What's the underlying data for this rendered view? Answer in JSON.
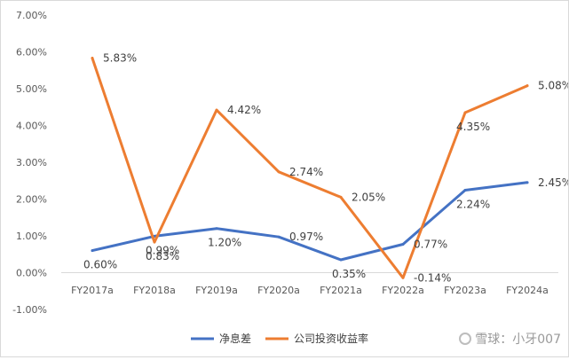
{
  "chart_data": {
    "type": "line",
    "title": "",
    "xlabel": "",
    "ylabel": "",
    "categories": [
      "FY2017a",
      "FY2018a",
      "FY2019a",
      "FY2020a",
      "FY2021a",
      "FY2022a",
      "FY2023a",
      "FY2024a"
    ],
    "ylim": [
      -1.0,
      7.0
    ],
    "yticks": [
      "7.00%",
      "6.00%",
      "5.00%",
      "4.00%",
      "3.00%",
      "2.00%",
      "1.00%",
      "0.00%",
      "-1.00%"
    ],
    "ytick_values": [
      7,
      6,
      5,
      4,
      3,
      2,
      1,
      0,
      -1
    ],
    "grid": false,
    "legend_position": "bottom",
    "series": [
      {
        "name": "净息差",
        "color": "#4472C4",
        "values": [
          0.6,
          0.99,
          1.2,
          0.97,
          0.35,
          0.77,
          2.24,
          2.45
        ],
        "labels": [
          "0.60%",
          "0.99%",
          "1.20%",
          "0.97%",
          "0.35%",
          "0.77%",
          "2.24%",
          "2.45%"
        ],
        "label_side": [
          "below",
          "below",
          "below",
          "right",
          "below",
          "right",
          "below",
          "right"
        ]
      },
      {
        "name": "公司投资收益率",
        "color": "#ED7D31",
        "values": [
          5.83,
          0.83,
          4.42,
          2.74,
          2.05,
          -0.14,
          4.35,
          5.08
        ],
        "labels": [
          "5.83%",
          "0.83%",
          "4.42%",
          "2.74%",
          "2.05%",
          "-0.14%",
          "4.35%",
          "5.08%"
        ],
        "label_side": [
          "right",
          "below",
          "right",
          "right",
          "right",
          "right",
          "below",
          "right"
        ]
      }
    ]
  },
  "watermark": {
    "text": "雪球：小牙007"
  }
}
